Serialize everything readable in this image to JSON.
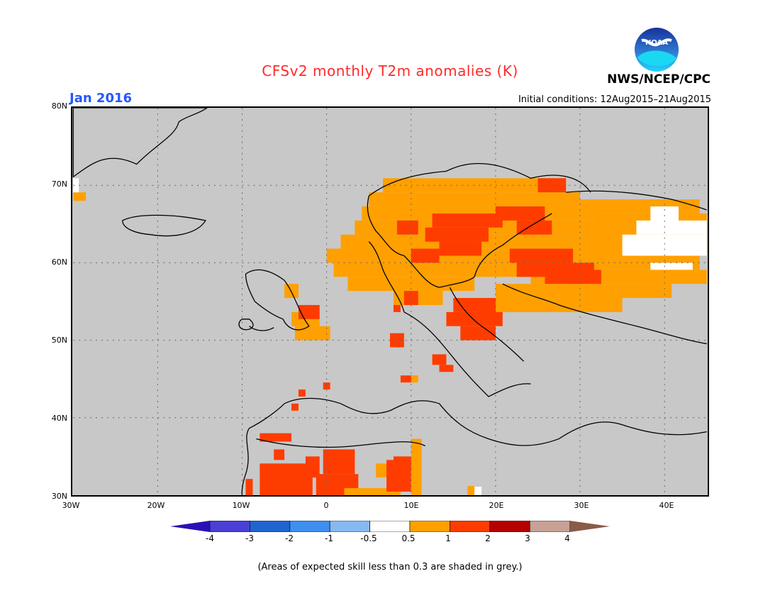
{
  "title": "CFSv2 monthly T2m anomalies (K)",
  "month_label": "Jan 2016",
  "initial_conditions": "Initial conditions: 12Aug2015–21Aug2015",
  "agency": "NWS/NCEP/CPC",
  "logo_text": "NOAA",
  "footnote": "(Areas of expected skill less than 0.3 are shaded in grey.)",
  "map": {
    "lon_range": [
      -30,
      45
    ],
    "lat_range": [
      30,
      80
    ],
    "lon_ticks": [
      "30W",
      "20W",
      "10W",
      "0",
      "10E",
      "20E",
      "30E",
      "40E"
    ],
    "lat_ticks": [
      "80N",
      "70N",
      "60N",
      "50N",
      "40N",
      "30N"
    ],
    "grid_style": "dotted",
    "background_skill_mask_color": "#c8c8c8"
  },
  "legend": {
    "labels": [
      "-4",
      "-3",
      "-2",
      "-1",
      "-0.5",
      "0.5",
      "1",
      "2",
      "3",
      "4"
    ],
    "colors": [
      "#2b0fb5",
      "#4b3fd6",
      "#1f64d1",
      "#3f8ff0",
      "#87b9f1",
      "#ffffff",
      "#ffa000",
      "#ff3c00",
      "#b70000",
      "#c8a094",
      "#8a5b48"
    ]
  },
  "colors": {
    "title": "#ff2a2a",
    "month": "#2457ff",
    "orange": "#ffa000",
    "red": "#ff3c00",
    "white": "#ffffff"
  }
}
